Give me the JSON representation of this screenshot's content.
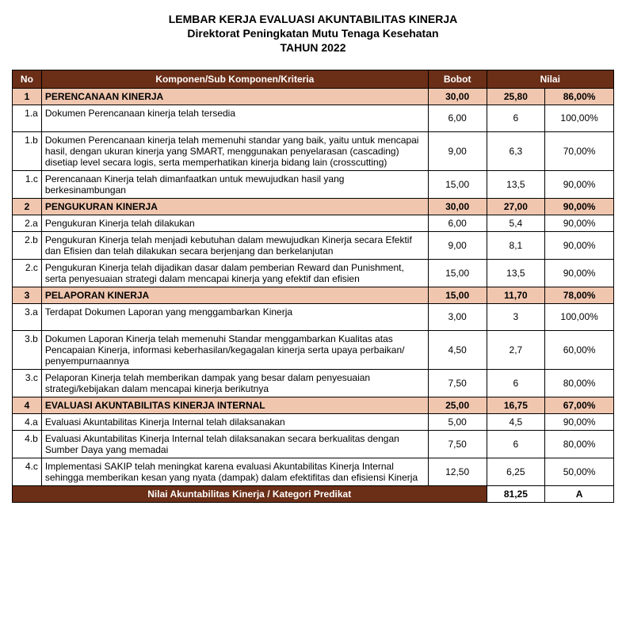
{
  "title": {
    "line1": "LEMBAR KERJA EVALUASI AKUNTABILITAS KINERJA",
    "line2": "Direktorat Peningkatan Mutu Tenaga Kesehatan",
    "line3": "TAHUN 2022"
  },
  "headers": {
    "no": "No",
    "komponen": "Komponen/Sub Komponen/Kriteria",
    "bobot": "Bobot",
    "nilai": "Nilai"
  },
  "sections": [
    {
      "no": "1",
      "title": "PERENCANAAN KINERJA",
      "bobot": "30,00",
      "nilai1": "25,80",
      "nilai2": "86,00%",
      "rows": [
        {
          "no": "1.a",
          "desc": "Dokumen Perencanaan kinerja telah tersedia",
          "bobot": "6,00",
          "nilai1": "6",
          "nilai2": "100,00%",
          "tall": true
        },
        {
          "no": "1.b",
          "desc": "Dokumen Perencanaan kinerja telah memenuhi standar yang baik, yaitu untuk mencapai hasil, dengan ukuran kinerja yang SMART, menggunakan penyelarasan (cascading) disetiap level secara logis, serta memperhatikan kinerja bidang lain (crosscutting)",
          "bobot": "9,00",
          "nilai1": "6,3",
          "nilai2": "70,00%"
        },
        {
          "no": "1.c",
          "desc": "Perencanaan Kinerja telah dimanfaatkan untuk mewujudkan hasil yang berkesinambungan",
          "bobot": "15,00",
          "nilai1": "13,5",
          "nilai2": "90,00%",
          "tall": true
        }
      ]
    },
    {
      "no": "2",
      "title": "PENGUKURAN KINERJA",
      "bobot": "30,00",
      "nilai1": "27,00",
      "nilai2": "90,00%",
      "rows": [
        {
          "no": "2.a",
          "desc": "Pengukuran Kinerja telah dilakukan",
          "bobot": "6,00",
          "nilai1": "5,4",
          "nilai2": "90,00%"
        },
        {
          "no": "2.b",
          "desc": "Pengukuran Kinerja telah menjadi kebutuhan dalam mewujudkan Kinerja secara Efektif dan Efisien dan telah dilakukan secara berjenjang dan berkelanjutan",
          "bobot": "9,00",
          "nilai1": "8,1",
          "nilai2": "90,00%",
          "tall": true
        },
        {
          "no": "2.c",
          "desc": "Pengukuran Kinerja telah dijadikan dasar dalam pemberian Reward dan Punishment, serta penyesuaian strategi dalam mencapai kinerja yang efektif dan efisien",
          "bobot": "15,00",
          "nilai1": "13,5",
          "nilai2": "90,00%",
          "tall": true
        }
      ]
    },
    {
      "no": "3",
      "title": "PELAPORAN KINERJA",
      "bobot": "15,00",
      "nilai1": "11,70",
      "nilai2": "78,00%",
      "rows": [
        {
          "no": "3.a",
          "desc": "Terdapat Dokumen Laporan yang menggambarkan Kinerja",
          "bobot": "3,00",
          "nilai1": "3",
          "nilai2": "100,00%",
          "tall": true
        },
        {
          "no": "3.b",
          "desc": "Dokumen Laporan Kinerja telah memenuhi Standar menggambarkan Kualitas atas Pencapaian Kinerja, informasi keberhasilan/kegagalan kinerja serta upaya perbaikan/ penyempurnaannya",
          "bobot": "4,50",
          "nilai1": "2,7",
          "nilai2": "60,00%",
          "tall": true
        },
        {
          "no": "3.c",
          "desc": "Pelaporan Kinerja telah memberikan dampak yang besar dalam penyesuaian strategi/kebijakan dalam mencapai kinerja berikutnya",
          "bobot": "7,50",
          "nilai1": "6",
          "nilai2": "80,00%",
          "tall": true
        }
      ]
    },
    {
      "no": "4",
      "title": "EVALUASI AKUNTABILITAS KINERJA INTERNAL",
      "bobot": "25,00",
      "nilai1": "16,75",
      "nilai2": "67,00%",
      "rows": [
        {
          "no": "4.a",
          "desc": "Evaluasi Akuntabilitas Kinerja Internal telah dilaksanakan",
          "bobot": "5,00",
          "nilai1": "4,5",
          "nilai2": "90,00%"
        },
        {
          "no": "4.b",
          "desc": "Evaluasi Akuntabilitas Kinerja Internal telah dilaksanakan secara berkualitas dengan Sumber Daya yang memadai",
          "bobot": "7,50",
          "nilai1": "6",
          "nilai2": "80,00%",
          "tall": true
        },
        {
          "no": "4.c",
          "desc": "Implementasi SAKIP telah meningkat karena evaluasi Akuntabilitas Kinerja Internal sehingga memberikan kesan yang nyata (dampak) dalam efektifitas dan efisiensi Kinerja",
          "bobot": "12,50",
          "nilai1": "6,25",
          "nilai2": "50,00%",
          "tall": true
        }
      ]
    }
  ],
  "footer": {
    "label": "Nilai Akuntabilitas Kinerja / Kategori Predikat",
    "score": "81,25",
    "grade": "A"
  },
  "colors": {
    "header_bg": "#6b2e17",
    "header_fg": "#ffffff",
    "section_bg": "#f0c6af",
    "border": "#000000",
    "page_bg": "#ffffff"
  }
}
